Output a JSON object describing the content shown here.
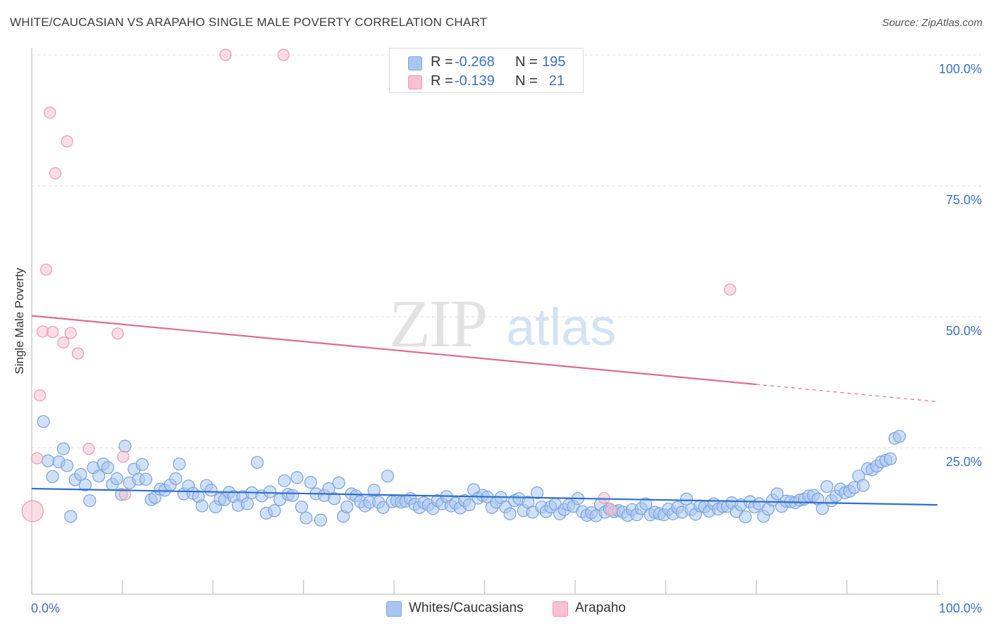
{
  "title": "WHITE/CAUCASIAN VS ARAPAHO SINGLE MALE POVERTY CORRELATION CHART",
  "source": "Source: ZipAtlas.com",
  "watermark": {
    "zip": "ZIP",
    "atlas": "atlas"
  },
  "colors": {
    "blue_fill": "#a9c6f0",
    "blue_stroke": "#7aa3dd",
    "blue_line": "#2e6fcb",
    "pink_fill": "#f7c1d0",
    "pink_stroke": "#ec9ab2",
    "pink_line": "#e06a92",
    "tick_label": "#3b6fc4",
    "grid": "#dddddd"
  },
  "legend_top": [
    {
      "swatch": "blue",
      "r_label": "R =",
      "r_value": "-0.268",
      "n_label": "N =",
      "n_value": "195"
    },
    {
      "swatch": "pink",
      "r_label": "R =",
      "r_value": "-0.139",
      "n_label": "N =",
      "n_value": "21"
    }
  ],
  "legend_bottom": [
    {
      "swatch": "blue",
      "label": "Whites/Caucasians"
    },
    {
      "swatch": "pink",
      "label": "Arapaho"
    }
  ],
  "chart_data": {
    "type": "scatter",
    "title": "WHITE/CAUCASIAN VS ARAPAHO SINGLE MALE POVERTY CORRELATION CHART",
    "xlabel": "",
    "ylabel": "Single Male Poverty",
    "xlim": [
      0,
      100
    ],
    "ylim": [
      0,
      100
    ],
    "x_tick_labels": [
      "0.0%",
      "100.0%"
    ],
    "y_tick_labels": [
      "25.0%",
      "50.0%",
      "75.0%",
      "100.0%"
    ],
    "y_ticks": [
      25,
      50,
      75,
      100
    ],
    "grid": "horizontal dashed",
    "legend": "top-center",
    "series": [
      {
        "name": "Whites/Caucasians",
        "color": "blue",
        "r": -0.268,
        "n": 195,
        "trend": {
          "x": [
            0,
            100
          ],
          "y": [
            17.2,
            14.1
          ]
        },
        "points": [
          [
            1.3,
            30
          ],
          [
            1.8,
            22.5
          ],
          [
            2.3,
            19.5
          ],
          [
            3,
            22.3
          ],
          [
            3.5,
            24.8
          ],
          [
            3.9,
            21.6
          ],
          [
            4.3,
            11.9
          ],
          [
            4.8,
            18.9
          ],
          [
            5.4,
            19.9
          ],
          [
            5.9,
            17.9
          ],
          [
            6.4,
            14.9
          ],
          [
            6.8,
            21.2
          ],
          [
            7.4,
            19.6
          ],
          [
            7.9,
            21.9
          ],
          [
            8.4,
            21.2
          ],
          [
            8.9,
            18
          ],
          [
            9.4,
            19.1
          ],
          [
            9.9,
            16.1
          ],
          [
            10.3,
            25.3
          ],
          [
            10.8,
            18.3
          ],
          [
            11.3,
            20.9
          ],
          [
            11.8,
            19
          ],
          [
            12.2,
            21.8
          ],
          [
            12.6,
            19
          ],
          [
            13.2,
            15.1
          ],
          [
            13.6,
            15.5
          ],
          [
            14.2,
            17.1
          ],
          [
            14.7,
            16.9
          ],
          [
            15.3,
            17.9
          ],
          [
            15.9,
            19.1
          ],
          [
            16.3,
            21.9
          ],
          [
            16.8,
            16.2
          ],
          [
            17.3,
            17.7
          ],
          [
            17.8,
            16.3
          ],
          [
            18.4,
            15.7
          ],
          [
            18.8,
            13.9
          ],
          [
            19.3,
            17.8
          ],
          [
            19.8,
            16.9
          ],
          [
            20.3,
            13.7
          ],
          [
            20.8,
            15.2
          ],
          [
            21.3,
            15.1
          ],
          [
            21.8,
            16.5
          ],
          [
            22.3,
            15.7
          ],
          [
            22.8,
            14
          ],
          [
            23.3,
            15.7
          ],
          [
            23.8,
            14.3
          ],
          [
            24.3,
            16.4
          ],
          [
            24.9,
            22.2
          ],
          [
            25.4,
            15.8
          ],
          [
            25.9,
            12.5
          ],
          [
            26.3,
            16.6
          ],
          [
            26.8,
            13
          ],
          [
            27.4,
            15.1
          ],
          [
            27.9,
            18.7
          ],
          [
            28.3,
            16.1
          ],
          [
            28.8,
            15.9
          ],
          [
            29.3,
            19.3
          ],
          [
            29.8,
            13.7
          ],
          [
            30.3,
            11.6
          ],
          [
            30.8,
            18.4
          ],
          [
            31.4,
            16.2
          ],
          [
            31.9,
            11.2
          ],
          [
            32.3,
            15.9
          ],
          [
            32.8,
            17.2
          ],
          [
            33.4,
            15.3
          ],
          [
            33.9,
            18.3
          ],
          [
            34.4,
            11.9
          ],
          [
            34.8,
            13.7
          ],
          [
            35.3,
            16.2
          ],
          [
            35.8,
            15.8
          ],
          [
            36.3,
            14.7
          ],
          [
            36.8,
            13.9
          ],
          [
            37.3,
            14.6
          ],
          [
            37.8,
            16.9
          ],
          [
            38.3,
            14.6
          ],
          [
            38.8,
            13.6
          ],
          [
            39.3,
            19.6
          ],
          [
            39.8,
            14.7
          ],
          [
            40.3,
            14.9
          ],
          [
            40.8,
            14.6
          ],
          [
            41.3,
            14.8
          ],
          [
            41.8,
            15.3
          ],
          [
            42.3,
            14.2
          ],
          [
            42.8,
            13.6
          ],
          [
            43.3,
            14.5
          ],
          [
            43.8,
            14.1
          ],
          [
            44.3,
            13.4
          ],
          [
            44.8,
            14.9
          ],
          [
            45.3,
            14.3
          ],
          [
            45.8,
            15.7
          ],
          [
            46.3,
            13.9
          ],
          [
            46.8,
            14.4
          ],
          [
            47.3,
            13.5
          ],
          [
            47.8,
            14.9
          ],
          [
            48.3,
            14.1
          ],
          [
            48.8,
            17
          ],
          [
            49.3,
            15.4
          ],
          [
            49.8,
            15.9
          ],
          [
            50.3,
            15.6
          ],
          [
            50.8,
            13.6
          ],
          [
            51.3,
            14.6
          ],
          [
            51.8,
            15.5
          ],
          [
            52.3,
            13.7
          ],
          [
            52.8,
            12.4
          ],
          [
            53.3,
            14.9
          ],
          [
            53.8,
            15.3
          ],
          [
            54.3,
            13
          ],
          [
            54.8,
            14.6
          ],
          [
            55.3,
            12.7
          ],
          [
            55.8,
            16.4
          ],
          [
            56.3,
            13.7
          ],
          [
            56.8,
            12.8
          ],
          [
            57.3,
            13.7
          ],
          [
            57.8,
            14.2
          ],
          [
            58.3,
            12.4
          ],
          [
            58.8,
            13.2
          ],
          [
            59.3,
            14.1
          ],
          [
            59.8,
            13.8
          ],
          [
            60.3,
            15.3
          ],
          [
            60.8,
            12.8
          ],
          [
            61.3,
            12.1
          ],
          [
            61.8,
            12.6
          ],
          [
            62.3,
            12
          ],
          [
            62.8,
            14.2
          ],
          [
            63.3,
            12.7
          ],
          [
            63.8,
            13.3
          ],
          [
            64.3,
            12.8
          ],
          [
            64.8,
            13
          ],
          [
            65.3,
            12.7
          ],
          [
            65.8,
            12.1
          ],
          [
            66.3,
            13.2
          ],
          [
            66.8,
            12.2
          ],
          [
            67.3,
            13.4
          ],
          [
            67.8,
            14.3
          ],
          [
            68.3,
            12.2
          ],
          [
            68.8,
            12.7
          ],
          [
            69.3,
            12.4
          ],
          [
            69.8,
            12.2
          ],
          [
            70.3,
            13.3
          ],
          [
            70.8,
            12.4
          ],
          [
            71.3,
            13.6
          ],
          [
            71.8,
            12.7
          ],
          [
            72.3,
            15.2
          ],
          [
            72.8,
            13.2
          ],
          [
            73.3,
            12.3
          ],
          [
            73.8,
            13.9
          ],
          [
            74.3,
            13.7
          ],
          [
            74.8,
            12.9
          ],
          [
            75.3,
            14.3
          ],
          [
            75.8,
            13.3
          ],
          [
            76.3,
            13.8
          ],
          [
            76.8,
            13.8
          ],
          [
            77.3,
            14.5
          ],
          [
            77.8,
            12.8
          ],
          [
            78.3,
            14.1
          ],
          [
            78.8,
            11.8
          ],
          [
            79.3,
            14.7
          ],
          [
            79.8,
            13.7
          ],
          [
            80.3,
            14.3
          ],
          [
            80.8,
            11.9
          ],
          [
            81.3,
            13.3
          ],
          [
            81.8,
            15
          ],
          [
            82.3,
            16.2
          ],
          [
            82.8,
            13.8
          ],
          [
            83.3,
            14.8
          ],
          [
            83.8,
            14.7
          ],
          [
            84.3,
            14.5
          ],
          [
            84.8,
            15
          ],
          [
            85.3,
            15.2
          ],
          [
            85.8,
            15.8
          ],
          [
            86.3,
            15.9
          ],
          [
            86.8,
            15.2
          ],
          [
            87.3,
            13.4
          ],
          [
            87.8,
            17.6
          ],
          [
            88.3,
            14.9
          ],
          [
            88.8,
            15.8
          ],
          [
            89.3,
            17.1
          ],
          [
            89.8,
            16.4
          ],
          [
            90.3,
            16.7
          ],
          [
            90.8,
            17.4
          ],
          [
            91.3,
            19.6
          ],
          [
            91.8,
            17.8
          ],
          [
            92.3,
            21
          ],
          [
            92.8,
            20.8
          ],
          [
            93.3,
            21.5
          ],
          [
            93.8,
            22.3
          ],
          [
            94.3,
            22.6
          ],
          [
            94.8,
            22.9
          ],
          [
            95.3,
            26.8
          ],
          [
            95.8,
            27.2
          ]
        ]
      },
      {
        "name": "Arapaho",
        "color": "pink",
        "r": -0.139,
        "n": 21,
        "trend": {
          "x": [
            0,
            80
          ],
          "y": [
            50.2,
            37.1
          ],
          "dashed_to": {
            "x": 100,
            "y": 33.8
          }
        },
        "points": [
          [
            0.1,
            12.9
          ],
          [
            0.6,
            23
          ],
          [
            0.9,
            35
          ],
          [
            1.2,
            47.2
          ],
          [
            1.6,
            59
          ],
          [
            2,
            89
          ],
          [
            2.3,
            47.1
          ],
          [
            2.6,
            77.4
          ],
          [
            3.5,
            45.1
          ],
          [
            3.9,
            83.5
          ],
          [
            4.3,
            46.9
          ],
          [
            5.1,
            43
          ],
          [
            6.3,
            24.8
          ],
          [
            9.5,
            46.8
          ],
          [
            10.1,
            23.3
          ],
          [
            10.3,
            16.1
          ],
          [
            21.4,
            100
          ],
          [
            27.8,
            100
          ],
          [
            64,
            13.1
          ],
          [
            77.1,
            55.2
          ],
          [
            63.2,
            15.4
          ]
        ]
      }
    ]
  }
}
